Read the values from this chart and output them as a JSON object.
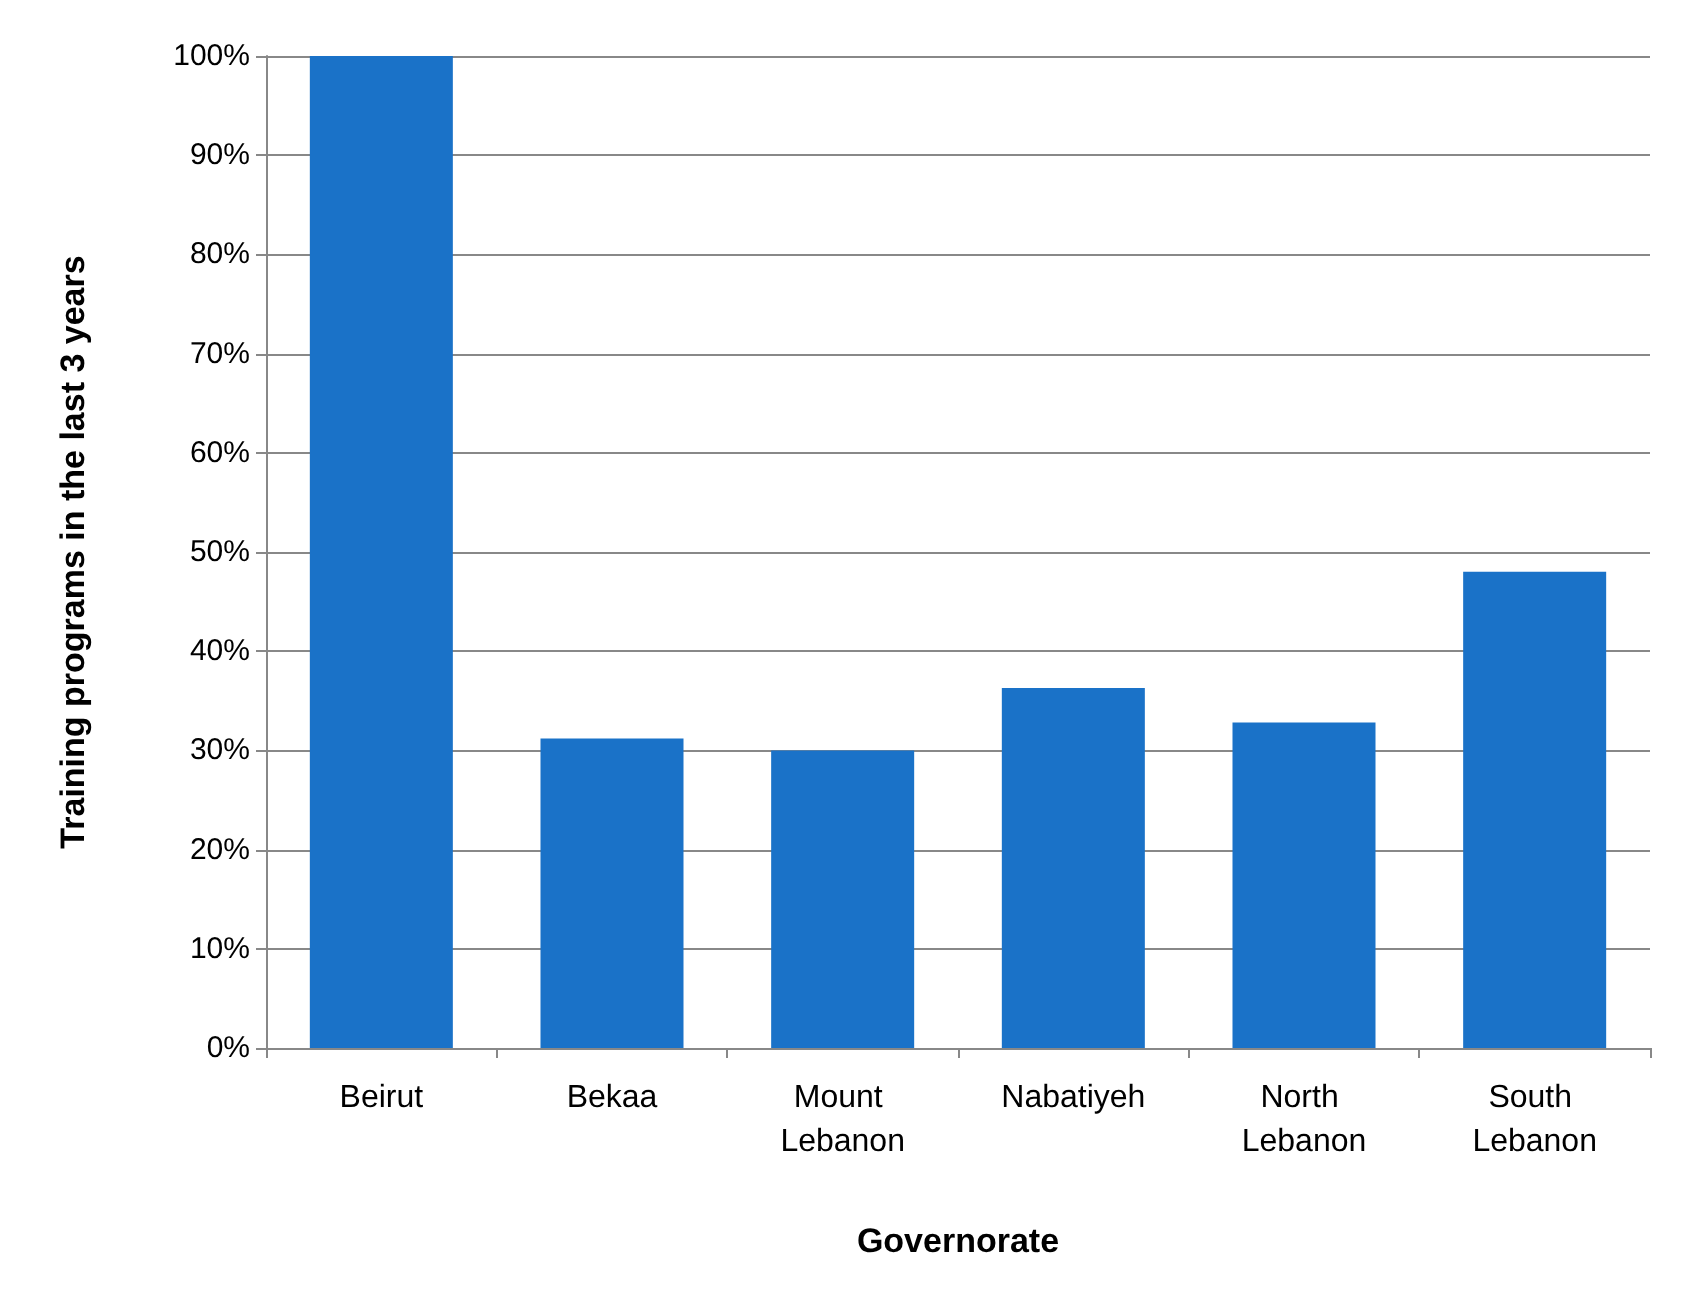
{
  "chart_data": {
    "type": "bar",
    "xlabel": "Governorate",
    "ylabel": "Training programs in the last 3 years",
    "categories": [
      "Beirut",
      "Bekaa",
      "Mount Lebanon",
      "Nabatiyeh",
      "North Lebanon",
      "South Lebanon"
    ],
    "values": [
      100,
      31.2,
      30,
      36.3,
      32.8,
      48
    ],
    "color": "#1a72c8",
    "ylim": [
      0,
      100
    ],
    "yticks": [
      {
        "value": 0,
        "label": "0%"
      },
      {
        "value": 10,
        "label": "10%"
      },
      {
        "value": 20,
        "label": "20%"
      },
      {
        "value": 30,
        "label": "30%"
      },
      {
        "value": 40,
        "label": "40%"
      },
      {
        "value": 50,
        "label": "50%"
      },
      {
        "value": 60,
        "label": "60%"
      },
      {
        "value": 70,
        "label": "70%"
      },
      {
        "value": 80,
        "label": "80%"
      },
      {
        "value": 90,
        "label": "90%"
      },
      {
        "value": 100,
        "label": "100%"
      }
    ],
    "grid": "y"
  }
}
